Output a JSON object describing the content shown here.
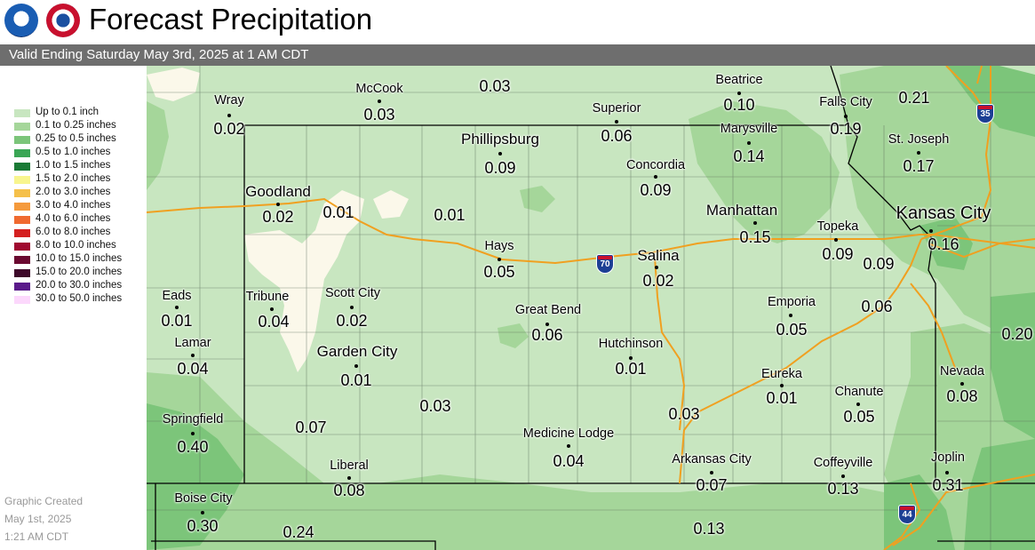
{
  "header": {
    "title": "Forecast Precipitation",
    "subtitle": "Valid Ending Saturday May 3rd, 2025 at 1 AM CDT",
    "logos": [
      "noaa-logo",
      "nws-logo"
    ]
  },
  "legend": {
    "items": [
      {
        "label": "Up to 0.1 inch",
        "color": "#c8e6c0"
      },
      {
        "label": "0.1 to 0.25 inches",
        "color": "#a5d69a"
      },
      {
        "label": "0.25 to 0.5 inches",
        "color": "#7cc57a"
      },
      {
        "label": "0.5 to 1.0 inches",
        "color": "#3aa655"
      },
      {
        "label": "1.0 to 1.5 inches",
        "color": "#1a7a35"
      },
      {
        "label": "1.5 to 2.0 inches",
        "color": "#f8f58e"
      },
      {
        "label": "2.0 to 3.0 inches",
        "color": "#f5c04a"
      },
      {
        "label": "3.0 to 4.0 inches",
        "color": "#f59a3c"
      },
      {
        "label": "4.0 to 6.0 inches",
        "color": "#f06a30"
      },
      {
        "label": "6.0 to 8.0 inches",
        "color": "#d42020"
      },
      {
        "label": "8.0 to 10.0 inches",
        "color": "#a00a30"
      },
      {
        "label": "10.0 to 15.0 inches",
        "color": "#6a0830"
      },
      {
        "label": "15.0 to 20.0 inches",
        "color": "#3e0a2a"
      },
      {
        "label": "20.0 to 30.0 inches",
        "color": "#5a1a8a"
      },
      {
        "label": "30.0 to 50.0 inches",
        "color": "#fcd8fc"
      }
    ]
  },
  "credit": {
    "line1": "Graphic Created",
    "line2": "May 1st, 2025",
    "line3": "1:21 AM CDT"
  },
  "map": {
    "locations": [
      {
        "name": "Wray",
        "value": "0.02"
      },
      {
        "name": "McCook",
        "value": "0.03"
      },
      {
        "name": "",
        "value": "0.03"
      },
      {
        "name": "Beatrice",
        "value": "0.10"
      },
      {
        "name": "Falls City",
        "value": "0.19"
      },
      {
        "name": "",
        "value": "0.21"
      },
      {
        "name": "Superior",
        "value": "0.06"
      },
      {
        "name": "Phillipsburg",
        "value": "0.09"
      },
      {
        "name": "Marysville",
        "value": "0.14"
      },
      {
        "name": "St. Joseph",
        "value": "0.17"
      },
      {
        "name": "Concordia",
        "value": "0.09"
      },
      {
        "name": "Goodland",
        "value": "0.02"
      },
      {
        "name": "",
        "value": "0.01"
      },
      {
        "name": "",
        "value": "0.01"
      },
      {
        "name": "Manhattan",
        "value": "0.15"
      },
      {
        "name": "Topeka",
        "value": "0.09"
      },
      {
        "name": "Kansas City",
        "value": "0.16"
      },
      {
        "name": "",
        "value": "0.09"
      },
      {
        "name": "Hays",
        "value": "0.05"
      },
      {
        "name": "Salina",
        "value": "0.02"
      },
      {
        "name": "Eads",
        "value": "0.01"
      },
      {
        "name": "Tribune",
        "value": "0.04"
      },
      {
        "name": "Scott City",
        "value": "0.02"
      },
      {
        "name": "Great Bend",
        "value": "0.06"
      },
      {
        "name": "Emporia",
        "value": "0.05"
      },
      {
        "name": "",
        "value": "0.06"
      },
      {
        "name": "",
        "value": "0.20"
      },
      {
        "name": "Lamar",
        "value": "0.04"
      },
      {
        "name": "Garden City",
        "value": "0.01"
      },
      {
        "name": "Hutchinson",
        "value": "0.01"
      },
      {
        "name": "Eureka",
        "value": "0.01"
      },
      {
        "name": "Chanute",
        "value": "0.05"
      },
      {
        "name": "Nevada",
        "value": "0.08"
      },
      {
        "name": "",
        "value": "0.03"
      },
      {
        "name": "",
        "value": "0.03"
      },
      {
        "name": "Springfield",
        "value": "0.40"
      },
      {
        "name": "",
        "value": "0.07"
      },
      {
        "name": "Medicine Lodge",
        "value": "0.04"
      },
      {
        "name": "Arkansas City",
        "value": "0.07"
      },
      {
        "name": "Coffeyville",
        "value": "0.13"
      },
      {
        "name": "Joplin",
        "value": "0.31"
      },
      {
        "name": "Liberal",
        "value": "0.08"
      },
      {
        "name": "Boise City",
        "value": "0.30"
      },
      {
        "name": "",
        "value": "0.24"
      },
      {
        "name": "",
        "value": "0.13"
      }
    ],
    "interstates": [
      "35",
      "70",
      "44"
    ]
  }
}
